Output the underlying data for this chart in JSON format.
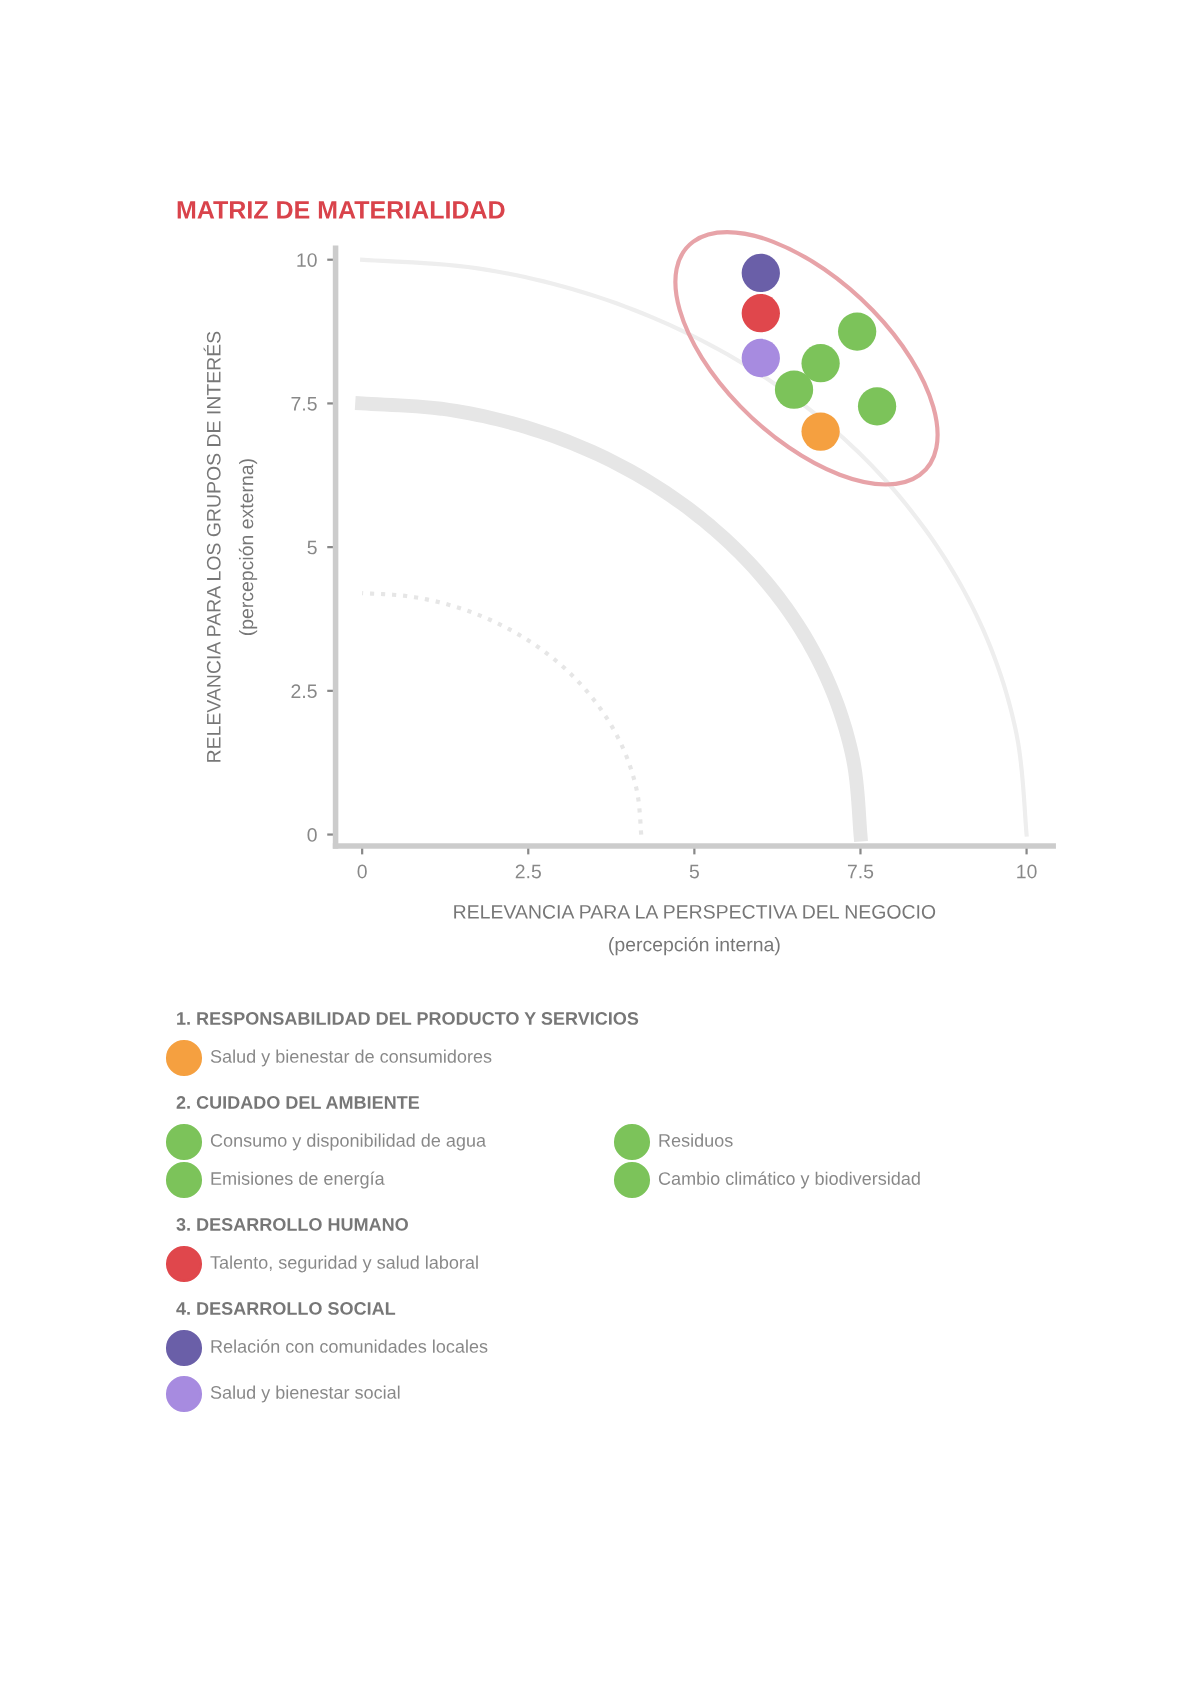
{
  "chart_data": {
    "type": "scatter",
    "title": "MATRIZ DE MATERIALIDAD",
    "xlabel": "RELEVANCIA PARA LA PERSPECTIVA DEL NEGOCIO\n(percepción interna)",
    "ylabel": "RELEVANCIA PARA LOS GRUPOS DE INTERÉS\n(percepción externa)",
    "xlim": [
      -0.4,
      10.4
    ],
    "ylim": [
      -0.2,
      10.2
    ],
    "xticks": [
      0,
      2.5,
      5,
      7.5,
      10
    ],
    "yticks": [
      0,
      2.5,
      5,
      7.5,
      10
    ],
    "grid": false,
    "legend": "bottom",
    "marker": "circle",
    "annotations": [
      "1. RESPONSABILIDAD DEL PRODUCTO Y SERVICIOS",
      "2. CUIDADO DEL AMBIENTE",
      "3. DESARROLLO HUMANO",
      "4. DESARROLLO SOCIAL"
    ],
    "series": [
      {
        "name": "Salud y bienestar de consumidores",
        "color": "#f5a040",
        "x": [
          6.9
        ],
        "values": [
          7.01
        ]
      },
      {
        "name": "Consumo y disponibilidad de agua",
        "color": "#7cc35a",
        "x": [
          7.45
        ],
        "values": [
          8.75
        ]
      },
      {
        "name": "Emisiones de energía",
        "color": "#7cc35a",
        "x": [
          6.9
        ],
        "values": [
          8.2
        ]
      },
      {
        "name": "Residuos",
        "color": "#7cc35a",
        "x": [
          6.5
        ],
        "values": [
          7.74
        ]
      },
      {
        "name": "Cambio climático y biodiversidad",
        "color": "#7cc35a",
        "x": [
          7.75
        ],
        "values": [
          7.45
        ]
      },
      {
        "name": "Talento, seguridad y salud laboral",
        "color": "#e0474c",
        "x": [
          6.0
        ],
        "values": [
          9.07
        ]
      },
      {
        "name": "Relación con comunidades locales",
        "color": "#6a5fa8",
        "x": [
          6.0
        ],
        "values": [
          9.77
        ]
      },
      {
        "name": "Salud y bienestar social",
        "color": "#a78be0",
        "x": [
          6.0
        ],
        "values": [
          8.29
        ]
      },
      {
        "type": "line",
        "marker": "none",
        "color": "#eeeeee",
        "line_style": "solid",
        "x": [
          10,
          9.85,
          9.4,
          8.66,
          7.66,
          6.43,
          5,
          3.42,
          1.74,
          0
        ],
        "values": [
          0,
          1.74,
          3.42,
          5,
          6.43,
          7.66,
          8.66,
          9.4,
          9.85,
          10
        ]
      },
      {
        "type": "line",
        "marker": "none",
        "color": "#e6e6e6",
        "line_style": "solid",
        "x": [
          7.5,
          7.39,
          7.05,
          6.5,
          5.75,
          4.82,
          3.75,
          2.57,
          1.3,
          0
        ],
        "values": [
          0,
          1.3,
          2.57,
          3.75,
          4.82,
          5.75,
          6.5,
          7.05,
          7.39,
          7.5
        ]
      },
      {
        "type": "line",
        "marker": "none",
        "color": "#e6e6e6",
        "line_style": "dotted",
        "x": [
          4.2,
          4.14,
          3.95,
          3.64,
          3.22,
          2.7,
          2.1,
          1.44,
          0.73,
          0
        ],
        "values": [
          0,
          0.73,
          1.44,
          2.1,
          2.7,
          3.22,
          3.64,
          3.95,
          4.14,
          4.2
        ]
      }
    ]
  }
}
